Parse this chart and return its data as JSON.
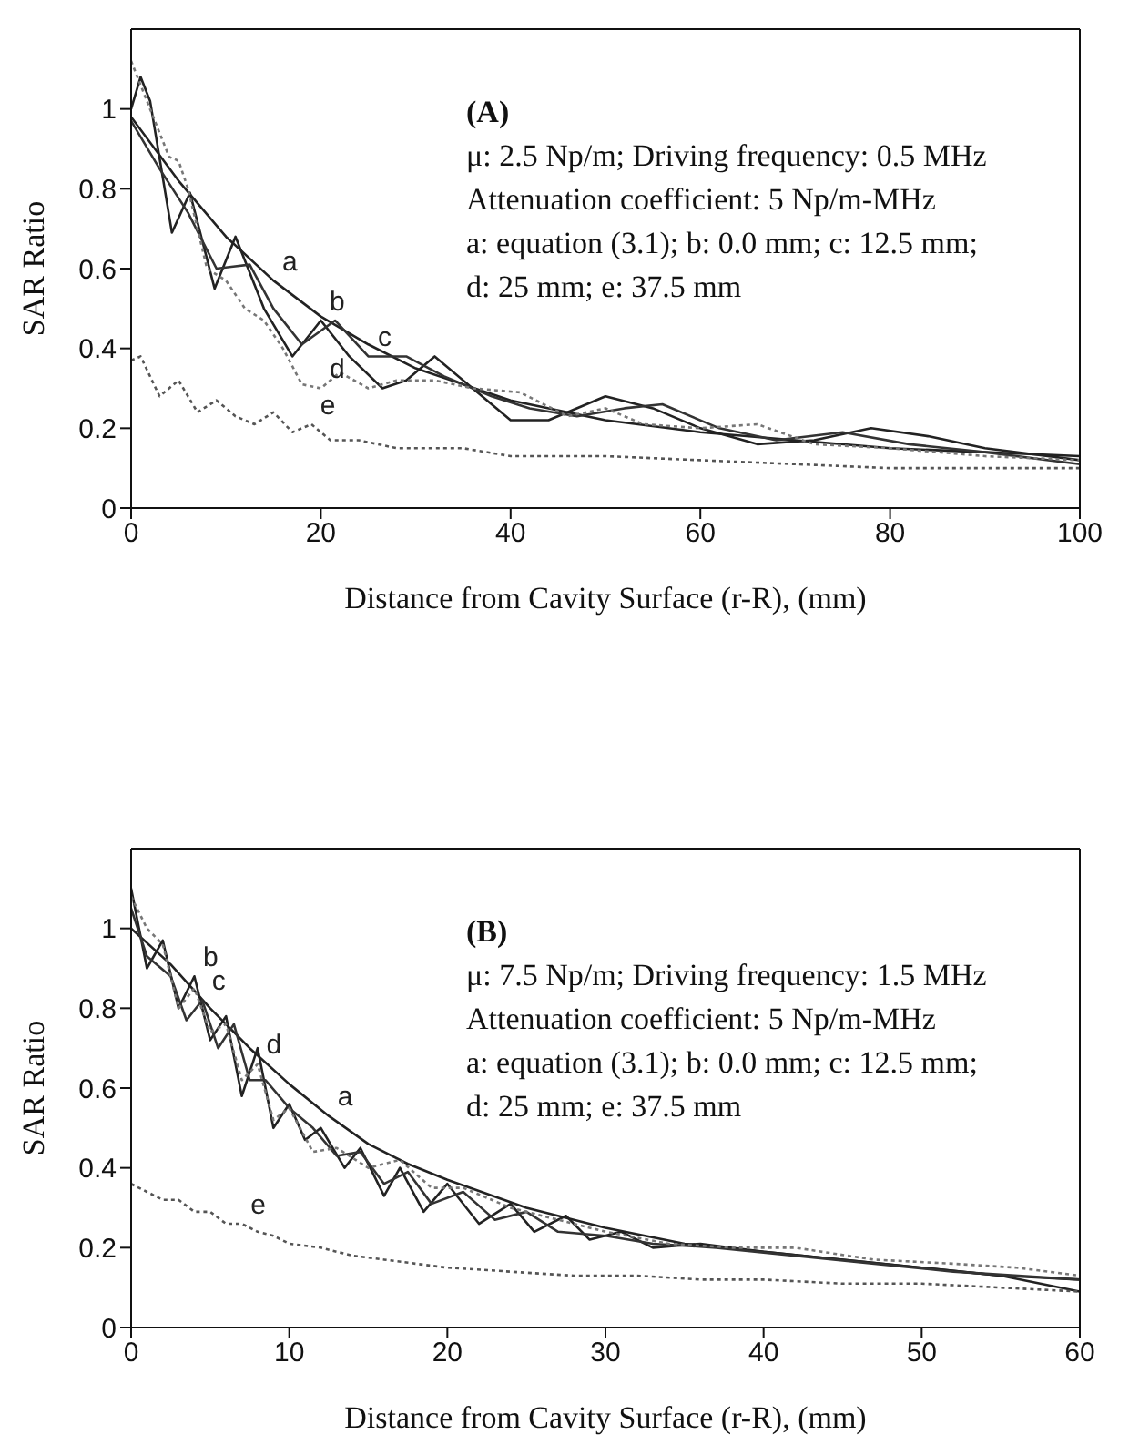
{
  "chart_data": [
    {
      "type": "line",
      "xlabel": "Distance from Cavity Surface (r-R), (mm)",
      "ylabel": "SAR Ratio",
      "xlim": [
        0,
        100
      ],
      "xticks": [
        0,
        20,
        40,
        60,
        80,
        100
      ],
      "ylim": [
        0,
        1.2
      ],
      "yticks": [
        0,
        0.2,
        0.4,
        0.6,
        0.8,
        1
      ],
      "annotations": [
        "(A)",
        "μ: 2.5 Np/m;  Driving frequency: 0.5 MHz",
        "Attenuation coefficient: 5 Np/m-MHz",
        "a: equation (3.1);   b: 0.0 mm;  c: 12.5 mm;",
        "d: 25 mm;   e: 37.5 mm",
        {
          "text": "a",
          "x": 15,
          "y": 0.57
        },
        {
          "text": "b",
          "x": 20,
          "y": 0.47
        },
        {
          "text": "c",
          "x": 25,
          "y": 0.38
        },
        {
          "text": "d",
          "x": 20,
          "y": 0.3
        },
        {
          "text": "e",
          "x": 19,
          "y": 0.21
        }
      ],
      "series": [
        {
          "color": "#222222",
          "line_style": "solid",
          "x": [
            0,
            5,
            10,
            15,
            20,
            25,
            30,
            35,
            40,
            50,
            60,
            70,
            80,
            90,
            100
          ],
          "values": [
            0.98,
            0.82,
            0.68,
            0.57,
            0.48,
            0.41,
            0.35,
            0.31,
            0.27,
            0.22,
            0.19,
            0.17,
            0.15,
            0.14,
            0.13
          ]
        },
        {
          "color": "#222222",
          "line_style": "solid",
          "x": [
            0,
            1,
            2,
            4.3,
            6.2,
            8.8,
            11,
            14,
            17,
            20,
            23,
            26.5,
            29,
            32,
            36,
            40,
            44,
            50,
            55,
            60,
            66,
            72,
            78,
            84,
            90,
            100
          ],
          "values": [
            1.0,
            1.08,
            1.02,
            0.69,
            0.79,
            0.55,
            0.68,
            0.5,
            0.38,
            0.47,
            0.38,
            0.3,
            0.32,
            0.38,
            0.3,
            0.22,
            0.22,
            0.28,
            0.25,
            0.2,
            0.16,
            0.17,
            0.2,
            0.18,
            0.15,
            0.12
          ]
        },
        {
          "color": "#333333",
          "line_style": "solid",
          "x": [
            0,
            3,
            6,
            9,
            12.5,
            15,
            18,
            21.5,
            25,
            29,
            33,
            38,
            42,
            47,
            52,
            56,
            62,
            68,
            75,
            82,
            90,
            100
          ],
          "values": [
            0.97,
            0.85,
            0.74,
            0.6,
            0.61,
            0.5,
            0.41,
            0.47,
            0.38,
            0.38,
            0.33,
            0.28,
            0.25,
            0.23,
            0.25,
            0.26,
            0.2,
            0.17,
            0.19,
            0.16,
            0.14,
            0.11
          ]
        },
        {
          "color": "#777777",
          "line_style": "dotted",
          "x": [
            0,
            2,
            4,
            5,
            6,
            8,
            10,
            12,
            14,
            16,
            18,
            20,
            22,
            25,
            28,
            32,
            36,
            41,
            46,
            50,
            54,
            60,
            66,
            72,
            80,
            90,
            100
          ],
          "values": [
            1.12,
            1.0,
            0.88,
            0.87,
            0.8,
            0.6,
            0.57,
            0.5,
            0.47,
            0.4,
            0.31,
            0.3,
            0.34,
            0.3,
            0.32,
            0.32,
            0.3,
            0.29,
            0.23,
            0.25,
            0.21,
            0.2,
            0.21,
            0.16,
            0.15,
            0.13,
            0.12
          ]
        },
        {
          "color": "#555555",
          "line_style": "dotted",
          "x": [
            0,
            1,
            3,
            5,
            7,
            9,
            11,
            13,
            15,
            17,
            19,
            21,
            24,
            28,
            35,
            40,
            50,
            60,
            70,
            80,
            90,
            100
          ],
          "values": [
            0.37,
            0.38,
            0.28,
            0.32,
            0.24,
            0.27,
            0.23,
            0.21,
            0.24,
            0.19,
            0.21,
            0.17,
            0.17,
            0.15,
            0.15,
            0.13,
            0.13,
            0.12,
            0.11,
            0.1,
            0.1,
            0.1
          ]
        }
      ]
    },
    {
      "type": "line",
      "xlabel": "Distance from Cavity Surface (r-R), (mm)",
      "ylabel": "SAR Ratio",
      "xlim": [
        0,
        60
      ],
      "xticks": [
        0,
        10,
        20,
        30,
        40,
        50,
        60
      ],
      "ylim": [
        0,
        1.2
      ],
      "yticks": [
        0,
        0.2,
        0.4,
        0.6,
        0.8,
        1
      ],
      "annotations": [
        "(B)",
        "μ: 7.5 Np/m;  Driving frequency: 1.5 MHz",
        "Attenuation coefficient: 5 Np/m-MHz",
        "a: equation (3.1);  b: 0.0 mm;  c: 12.5 mm;",
        "d: 25 mm;  e: 37.5 mm",
        {
          "text": "b",
          "x": 4,
          "y": 0.88
        },
        {
          "text": "c",
          "x": 4.5,
          "y": 0.82
        },
        {
          "text": "d",
          "x": 8,
          "y": 0.66
        },
        {
          "text": "a",
          "x": 12.5,
          "y": 0.53
        },
        {
          "text": "e",
          "x": 7,
          "y": 0.26
        }
      ],
      "series": [
        {
          "color": "#222222",
          "line_style": "solid",
          "x": [
            0,
            2.5,
            5,
            7.5,
            10,
            12.5,
            15,
            17.5,
            20,
            25,
            30,
            35,
            40,
            45,
            50,
            55,
            60
          ],
          "values": [
            1.0,
            0.91,
            0.8,
            0.7,
            0.61,
            0.53,
            0.46,
            0.41,
            0.37,
            0.3,
            0.25,
            0.21,
            0.19,
            0.17,
            0.15,
            0.13,
            0.12
          ]
        },
        {
          "color": "#222222",
          "line_style": "solid",
          "x": [
            0,
            1,
            2,
            3,
            4,
            5,
            6,
            7,
            8,
            9,
            10,
            11,
            12,
            13.5,
            14.5,
            16,
            17,
            18.5,
            20,
            22,
            24,
            25.5,
            27.5,
            29,
            31,
            33,
            36,
            40,
            45,
            50,
            55,
            60
          ],
          "values": [
            1.1,
            0.9,
            0.97,
            0.8,
            0.88,
            0.72,
            0.78,
            0.58,
            0.7,
            0.5,
            0.56,
            0.47,
            0.5,
            0.4,
            0.45,
            0.33,
            0.4,
            0.29,
            0.36,
            0.26,
            0.31,
            0.24,
            0.28,
            0.22,
            0.24,
            0.2,
            0.21,
            0.19,
            0.17,
            0.15,
            0.13,
            0.09
          ]
        },
        {
          "color": "#333333",
          "line_style": "solid",
          "x": [
            0,
            1,
            2.5,
            3.5,
            4.5,
            5.5,
            6.5,
            7.5,
            8.5,
            10,
            11.5,
            13,
            14.5,
            16,
            17.5,
            19,
            21,
            23,
            25,
            27,
            30,
            33,
            37,
            42,
            47,
            52,
            60
          ],
          "values": [
            1.05,
            0.93,
            0.88,
            0.77,
            0.82,
            0.7,
            0.76,
            0.62,
            0.62,
            0.55,
            0.5,
            0.43,
            0.44,
            0.36,
            0.39,
            0.31,
            0.34,
            0.27,
            0.29,
            0.24,
            0.23,
            0.21,
            0.2,
            0.18,
            0.16,
            0.14,
            0.12
          ]
        },
        {
          "color": "#777777",
          "line_style": "dotted",
          "x": [
            0,
            1,
            2,
            3,
            4,
            5,
            6,
            7,
            8,
            9,
            10,
            11.5,
            13,
            15,
            17,
            19,
            21,
            24,
            27,
            30,
            34,
            38,
            42,
            47,
            52,
            56,
            60
          ],
          "values": [
            1.08,
            1.0,
            0.96,
            0.8,
            0.85,
            0.74,
            0.76,
            0.62,
            0.66,
            0.52,
            0.55,
            0.44,
            0.45,
            0.4,
            0.42,
            0.35,
            0.35,
            0.3,
            0.27,
            0.24,
            0.21,
            0.2,
            0.2,
            0.17,
            0.16,
            0.15,
            0.13
          ]
        },
        {
          "color": "#555555",
          "line_style": "dotted",
          "x": [
            0,
            1,
            2,
            3,
            4,
            5,
            6,
            7,
            8,
            9,
            10,
            12,
            14,
            16,
            18,
            20,
            24,
            28,
            32,
            36,
            40,
            45,
            50,
            55,
            60
          ],
          "values": [
            0.36,
            0.34,
            0.32,
            0.32,
            0.29,
            0.29,
            0.26,
            0.26,
            0.24,
            0.23,
            0.21,
            0.2,
            0.18,
            0.17,
            0.16,
            0.15,
            0.14,
            0.13,
            0.13,
            0.12,
            0.12,
            0.11,
            0.11,
            0.1,
            0.09
          ]
        }
      ]
    }
  ]
}
